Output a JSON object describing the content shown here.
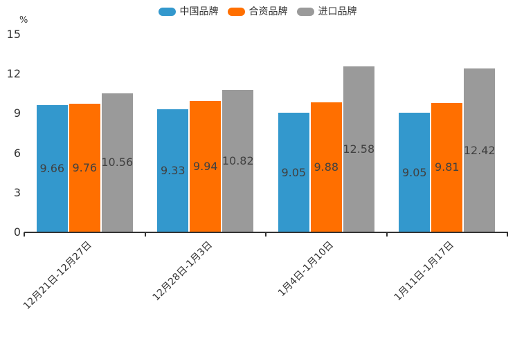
{
  "chart_data": {
    "type": "bar",
    "title": "",
    "xlabel": "",
    "ylabel": "%",
    "ylim": [
      0,
      15
    ],
    "yticks": [
      0,
      3,
      6,
      9,
      12,
      15
    ],
    "grid": false,
    "legend_position": "top-center",
    "value_labels": "inside-center",
    "x_label_rotation_deg": 45,
    "categories": [
      "12月21日-12月27日",
      "12月28日-1月3日",
      "1月4日-1月10日",
      "1月11日-1月17日"
    ],
    "series": [
      {
        "name": "中国品牌",
        "color": "#3398cd",
        "values": [
          9.66,
          9.33,
          9.05,
          9.05
        ]
      },
      {
        "name": "合资品牌",
        "color": "#ff6f00",
        "values": [
          9.76,
          9.94,
          9.88,
          9.81
        ]
      },
      {
        "name": "进口品牌",
        "color": "#9a9a9a",
        "values": [
          10.56,
          10.82,
          12.58,
          12.42
        ]
      }
    ],
    "colors": {
      "axis": "#333333",
      "tick_text": "#333333",
      "value_label_text": "#404040",
      "background": "#ffffff"
    }
  }
}
